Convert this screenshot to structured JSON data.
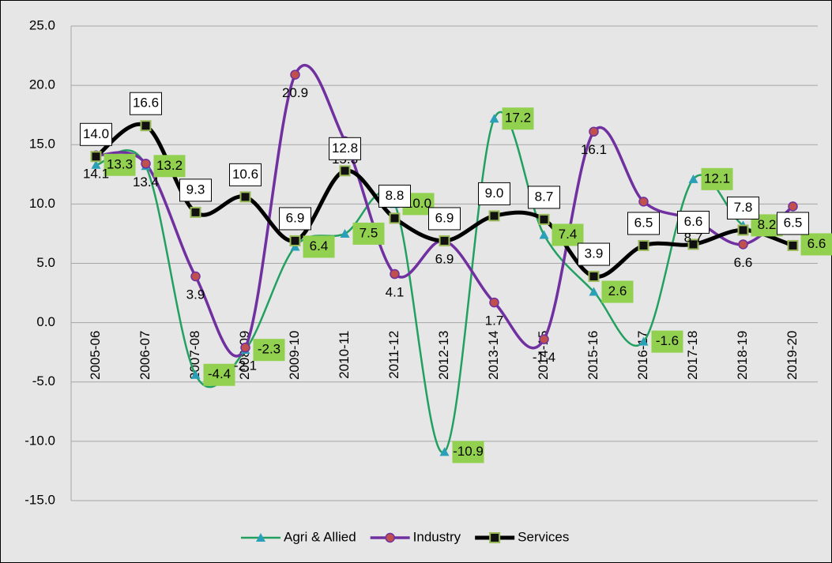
{
  "chart_data": {
    "type": "line",
    "categories": [
      "2005-06",
      "2006-07",
      "2007-08",
      "2008-09",
      "2009-10",
      "2010-11",
      "2011-12",
      "2012-13",
      "2013-14",
      "2014-15",
      "2015-16",
      "2016-17",
      "2017-18",
      "2018-19",
      "2019-20"
    ],
    "series": [
      {
        "name": "Agri & Allied",
        "color": "#22a060",
        "marker_color": "#2a9fb8",
        "values": [
          13.3,
          13.2,
          -4.4,
          -2.3,
          6.4,
          7.5,
          10.0,
          -10.9,
          17.2,
          7.4,
          2.6,
          -1.6,
          12.1,
          8.2,
          6.6
        ],
        "value_labels": [
          "13.3",
          "13.2",
          "-4.4",
          "-2.3",
          "6.4",
          "7.5",
          "10.0",
          "-10.9",
          "17.2",
          "7.4",
          "2.6",
          "-1.6",
          "12.1",
          "8.2",
          "6.6"
        ]
      },
      {
        "name": "Industry",
        "color": "#7030a0",
        "marker_color": "#c0504d",
        "values": [
          14.1,
          13.4,
          3.9,
          -2.1,
          20.9,
          15.3,
          4.1,
          6.9,
          1.7,
          -1.4,
          16.1,
          10.2,
          8.7,
          6.6,
          9.8
        ],
        "value_labels": [
          "14.1",
          "13.4",
          "3.9",
          "-2.1",
          "20.9",
          "15.3",
          "4.1",
          "6.9",
          "1.7",
          "-1.4",
          "16.1",
          "10.2",
          "8.7",
          "6.6",
          "9.8"
        ]
      },
      {
        "name": "Services",
        "color": "#000000",
        "marker_color": "#9bbb59",
        "values": [
          14.0,
          16.6,
          9.3,
          10.6,
          6.9,
          12.8,
          8.8,
          6.9,
          9.0,
          8.7,
          3.9,
          6.5,
          6.6,
          7.8,
          6.5
        ],
        "value_labels": [
          "14.0",
          "16.6",
          "9.3",
          "10.6",
          "6.9",
          "12.8",
          "8.8",
          "6.9",
          "9.0",
          "8.7",
          "3.9",
          "6.5",
          "6.6",
          "7.8",
          "6.5"
        ]
      }
    ],
    "ylim": [
      -15,
      25
    ],
    "yticks": [
      {
        "value": -15,
        "label": "-15.0"
      },
      {
        "value": -10,
        "label": "-10.0"
      },
      {
        "value": -5,
        "label": "-5.0"
      },
      {
        "value": 0,
        "label": "0.0"
      },
      {
        "value": 5,
        "label": "5.0"
      },
      {
        "value": 10,
        "label": "10.0"
      },
      {
        "value": 15,
        "label": "15.0"
      },
      {
        "value": 20,
        "label": "20.0"
      },
      {
        "value": 25,
        "label": "25.0"
      }
    ],
    "grid": true,
    "smooth": true,
    "legend": "bottom"
  }
}
